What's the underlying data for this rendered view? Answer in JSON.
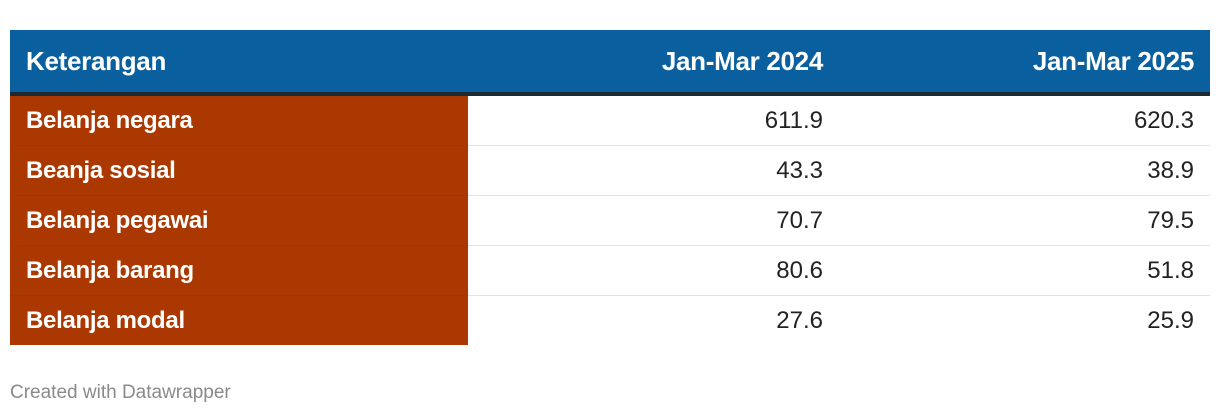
{
  "chart_data": {
    "type": "table",
    "columns": [
      "Keterangan",
      "Jan-Mar 2024",
      "Jan-Mar 2025"
    ],
    "rows": [
      {
        "label": "Belanja negara",
        "values": [
          "611.9",
          "620.3"
        ]
      },
      {
        "label": "Beanja sosial",
        "values": [
          "43.3",
          "38.9"
        ]
      },
      {
        "label": "Belanja pegawai",
        "values": [
          "70.7",
          "79.5"
        ]
      },
      {
        "label": "Belanja barang",
        "values": [
          "80.6",
          "51.8"
        ]
      },
      {
        "label": "Belanja modal",
        "values": [
          "27.6",
          "25.9"
        ]
      }
    ],
    "colors": {
      "header_background": "#0a5f9e",
      "label_column_background": "#aa3800",
      "header_text": "#ffffff",
      "label_text": "#ffffff",
      "value_text": "#222222"
    }
  },
  "footer": {
    "credit": "Created with Datawrapper"
  }
}
